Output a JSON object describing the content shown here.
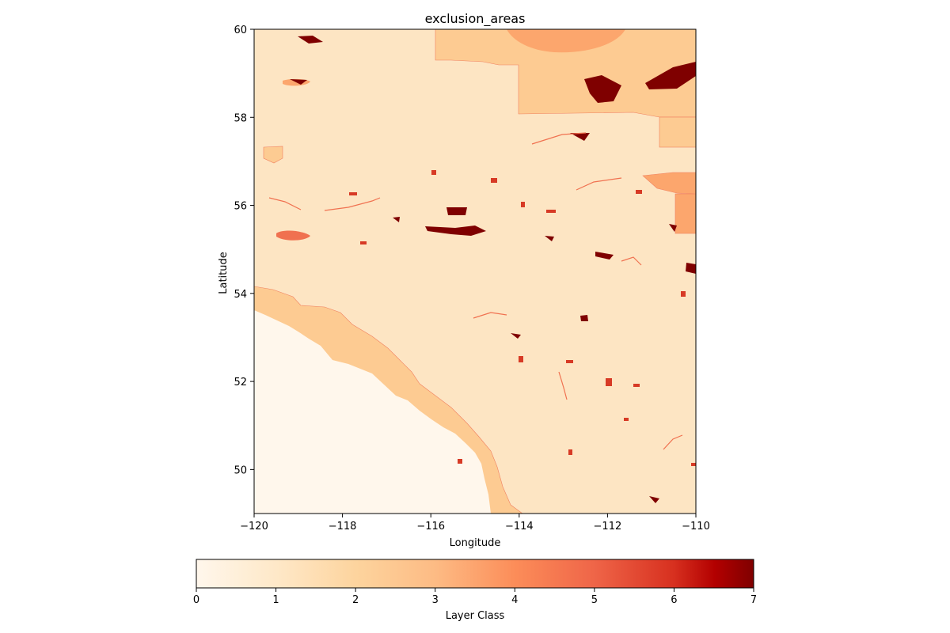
{
  "map": {
    "title": "exclusion_areas",
    "xlabel": "Longitude",
    "ylabel": "Latitude",
    "xlim": [
      -120,
      -110
    ],
    "ylim": [
      49,
      60
    ],
    "x_ticks": [
      {
        "value": -120,
        "label": "−120"
      },
      {
        "value": -118,
        "label": "−118"
      },
      {
        "value": -116,
        "label": "−116"
      },
      {
        "value": -114,
        "label": "−114"
      },
      {
        "value": -112,
        "label": "−112"
      },
      {
        "value": -110,
        "label": "−110"
      }
    ],
    "y_ticks": [
      {
        "value": 50,
        "label": "50"
      },
      {
        "value": 52,
        "label": "52"
      },
      {
        "value": 54,
        "label": "54"
      },
      {
        "value": 56,
        "label": "56"
      },
      {
        "value": 58,
        "label": "58"
      },
      {
        "value": 60,
        "label": "60"
      }
    ],
    "colormap": "OrRd",
    "class_colors": [
      "#fff7ec",
      "#fde5c3",
      "#fdcb92",
      "#fca66d",
      "#f07150",
      "#d73a25",
      "#b00000",
      "#7f0000"
    ]
  },
  "colorbar": {
    "label": "Layer Class",
    "min": 0,
    "max": 7,
    "ticks": [
      {
        "value": 0,
        "label": "0"
      },
      {
        "value": 1,
        "label": "1"
      },
      {
        "value": 2,
        "label": "2"
      },
      {
        "value": 3,
        "label": "3"
      },
      {
        "value": 4,
        "label": "4"
      },
      {
        "value": 5,
        "label": "5"
      },
      {
        "value": 6,
        "label": "6"
      },
      {
        "value": 7,
        "label": "7"
      }
    ],
    "stops": [
      {
        "offset": 0.0,
        "color": "#fff7ec"
      },
      {
        "offset": 0.143,
        "color": "#fee8c8"
      },
      {
        "offset": 0.286,
        "color": "#fdd49e"
      },
      {
        "offset": 0.429,
        "color": "#fdbb84"
      },
      {
        "offset": 0.571,
        "color": "#fc8d59"
      },
      {
        "offset": 0.714,
        "color": "#ef6548"
      },
      {
        "offset": 0.857,
        "color": "#d7301f"
      },
      {
        "offset": 0.93,
        "color": "#b30000"
      },
      {
        "offset": 1.0,
        "color": "#7f0000"
      }
    ]
  }
}
